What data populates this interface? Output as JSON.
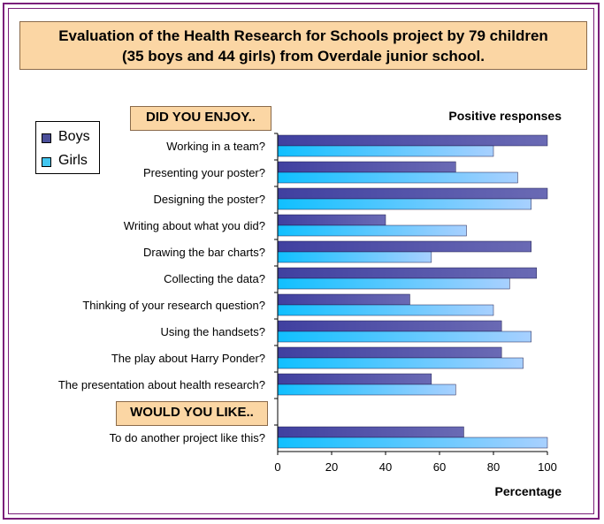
{
  "title": {
    "line1": "Evaluation of the Health Research for Schools project by 79 children",
    "line2": "(35 boys and 44 girls) from Overdale junior school."
  },
  "sections": {
    "enjoy": "DID YOU ENJOY..",
    "like": "WOULD YOU LIKE.."
  },
  "legend": {
    "boys": "Boys",
    "girls": "Girls"
  },
  "colors": {
    "boys": "#4b4f9a",
    "girls": "#42c6f0",
    "section_box": "#fbd6a4",
    "frame": "#7a1f7a"
  },
  "chart_data": {
    "type": "bar",
    "orientation": "horizontal",
    "subtitle": "Positive responses",
    "xlabel": "Percentage",
    "xlim": [
      0,
      100
    ],
    "xticks": [
      0,
      20,
      40,
      60,
      80,
      100
    ],
    "categories": [
      "Working in a team?",
      "Presenting your poster?",
      "Designing the poster?",
      "Writing about what you did?",
      "Drawing the bar charts?",
      "Collecting the data?",
      "Thinking of your research question?",
      "Using the handsets?",
      "The play about Harry Ponder?",
      "The presentation about health research?",
      "",
      "To do another project like this?"
    ],
    "series": [
      {
        "name": "Boys",
        "values": [
          100,
          66,
          100,
          40,
          94,
          96,
          49,
          83,
          83,
          57,
          null,
          69
        ]
      },
      {
        "name": "Girls",
        "values": [
          80,
          89,
          94,
          70,
          57,
          86,
          80,
          94,
          91,
          66,
          null,
          100
        ]
      }
    ],
    "legend_position": "left"
  }
}
